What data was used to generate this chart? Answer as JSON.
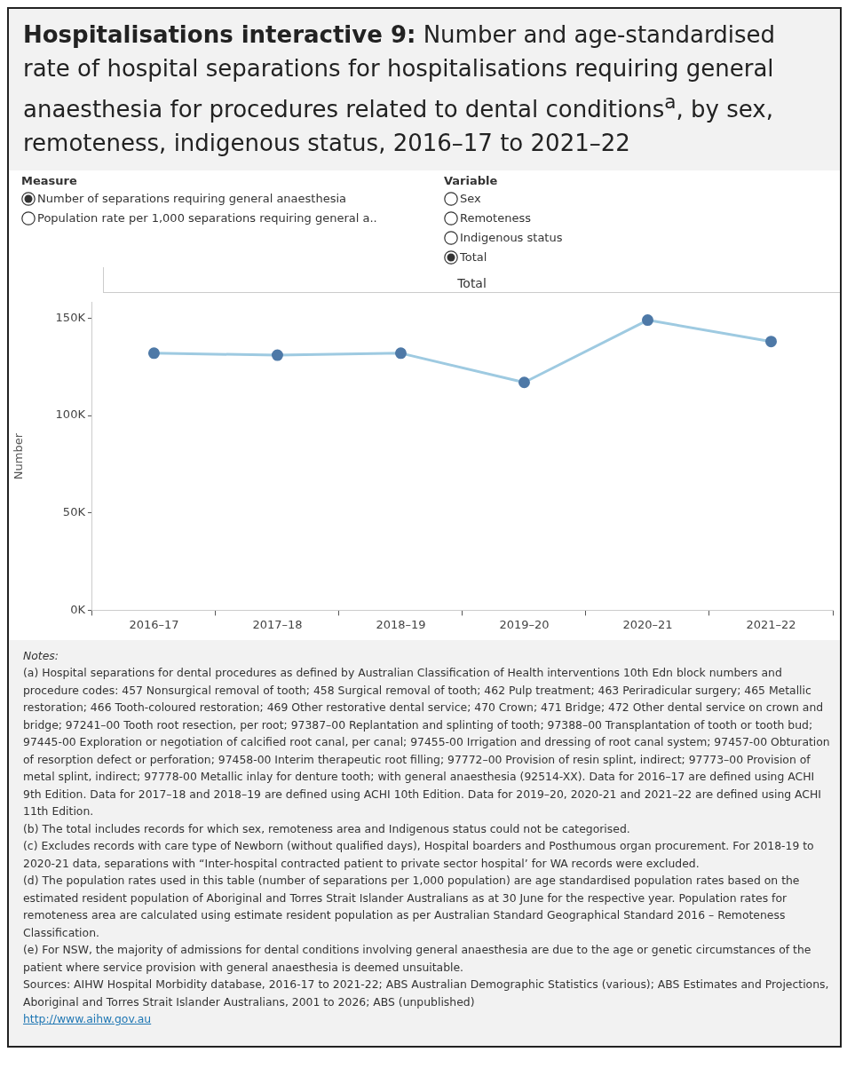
{
  "chart_data": {
    "type": "line",
    "title": "Hospitalisations interactive 9: Number and age-standardised rate of hospital separations for hospitalisations requiring general anaesthesia for procedures related to dental conditions$^{a}$, by sex, remoteness, indigenous status, 2016–17 to 2021–22",
    "ylabel": "Number",
    "categories": [
      "2016–17",
      "2017–18",
      "2018–19",
      "2019–20",
      "2020–21",
      "2021–22"
    ],
    "series": [
      {
        "color": "#9ecae1",
        "values": [
          132000,
          131000,
          132000,
          117000,
          149000,
          138000
        ]
      }
    ],
    "ylim": [
      0,
      158000
    ],
    "yticks": [
      {
        "value": 0,
        "label": "0K"
      },
      {
        "value": 50000,
        "label": "50K"
      },
      {
        "value": 100000,
        "label": "100K"
      },
      {
        "value": 150000,
        "label": "150K"
      }
    ],
    "grid": false,
    "legend": false,
    "marker": "circle",
    "annotations": [
      "Measure",
      "Number of separations requiring general anaesthesia",
      "Population rate per 1,000 separations requiring general a..",
      "Variable",
      "Sex",
      "Remoteness",
      "Indigenous status",
      "Total",
      "Total",
      "Notes:",
      "(a) Hospital separations for dental procedures as defined by  Australian Classification of Health interventions 10th Edn block numbers and procedure codes: 457 Nonsurgical removal of tooth; 458 Surgical removal of tooth; 462 Pulp treatment; 463 Periradicular surgery; 465 Metallic restoration; 466 Tooth-coloured restoration; 469 Other restorative dental service; 470 Crown; 471 Bridge; 472 Other dental service on crown and bridge; 97241–00 Tooth root resection, per root; 97387–00 Replantation and splinting of tooth; 97388–00 Transplantation of tooth or tooth bud; 97445-00 Exploration or negotiation of calcified root canal, per canal; 97455-00 Irrigation and dressing of root canal system; 97457-00 Obturation of resorption defect or perforation; 97458-00 Interim therapeutic root filling; 97772–00 Provision of resin splint, indirect; 97773–00 Provision of metal splint, indirect; 97778-00 Metallic inlay for denture tooth; with general anaesthesia (92514-XX). Data for 2016–17 are defined using ACHI 9th Edition. Data for 2017–18 and 2018–19 are defined using ACHI 10th Edition. Data for 2019–20, 2020-21 and 2021–22 are defined using ACHI 11th Edition.",
      "(b) The total includes records for which sex, remoteness area and Indigenous status could not be categorised.",
      "(c) Excludes records with care type of Newborn (without qualified days), Hospital boarders and Posthumous organ procurement. For 2018-19 to 2020-21 data, separations with “Inter-hospital contracted patient to private sector hospital’ for WA records were excluded.",
      "(d) The population rates used in this table (number of separations per 1,000 population) are age standardised population rates based on the estimated resident population of Aboriginal and Torres Strait Islander Australians as at 30 June for the respective year. Population rates for remoteness area are calculated using estimate resident population as per Australian Standard Geographical Standard 2016 – Remoteness Classification.",
      "(e) For NSW, the majority of admissions for dental conditions involving general anaesthesia are due to the age or genetic circumstances of the patient where service provision with general anaesthesia is deemed unsuitable.",
      "Sources: AIHW Hospital Morbidity database, 2016-17 to 2021-22; ABS Australian Demographic Statistics (various); ABS Estimates and Projections, Aboriginal and Torres Strait Islander Australians, 2001 to 2026; ABS (unpublished)",
      "http://www.aihw.gov.au"
    ]
  }
}
